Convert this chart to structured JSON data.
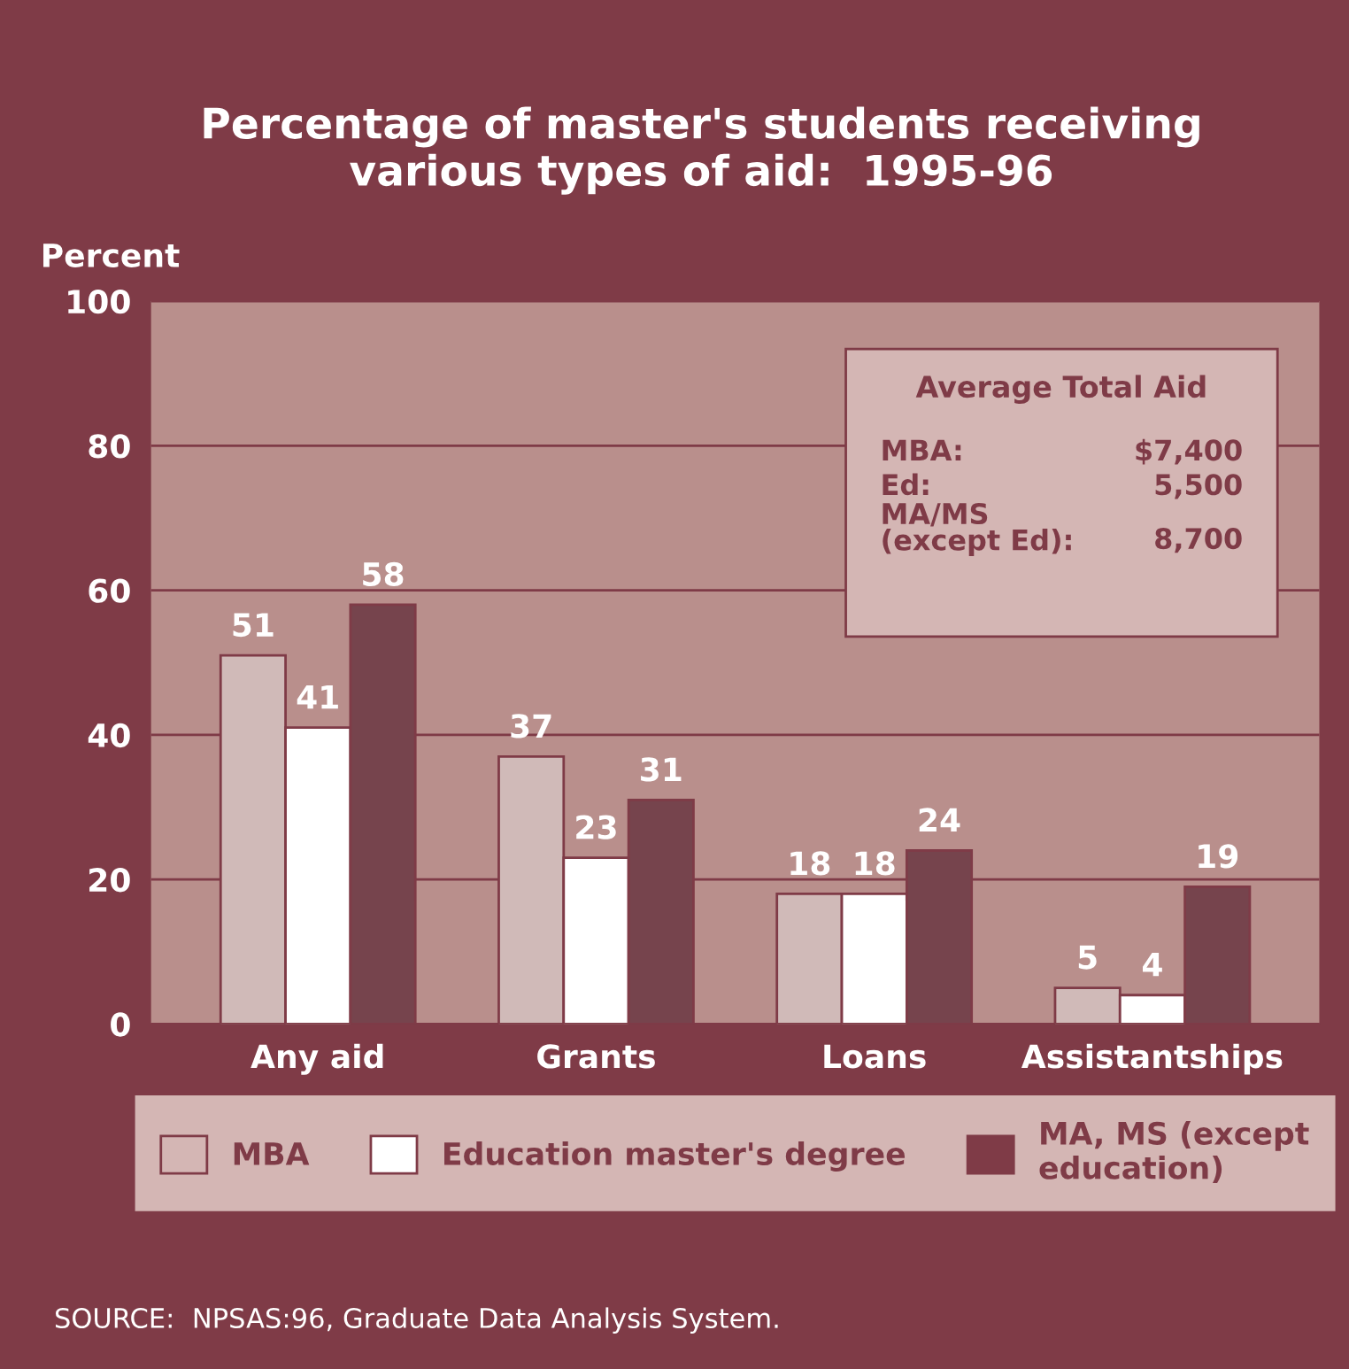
{
  "chart_data": {
    "type": "bar",
    "title": "Percentage of master's students receiving\nvarious types of aid:  1995-96",
    "ylabel": "Percent",
    "categories": [
      "Any aid",
      "Grants",
      "Loans",
      "Assistantships"
    ],
    "series": [
      {
        "name": "MBA",
        "color": "#d4b6b4",
        "values": [
          51,
          37,
          18,
          5
        ]
      },
      {
        "name": "Education master's degree",
        "color": "#ffffff",
        "values": [
          41,
          23,
          18,
          4
        ]
      },
      {
        "name": "MA, MS (except\neducation)",
        "color": "#7f3b47",
        "values": [
          58,
          31,
          24,
          19
        ]
      }
    ],
    "ylim": [
      0,
      100
    ],
    "yticks": [
      0,
      20,
      40,
      60,
      80,
      100
    ],
    "grid": "y",
    "legend": "bottom",
    "data_labels": true,
    "annotations": [
      "Average Total Aid",
      "MBA:",
      "$7,400",
      "Ed:",
      "5,500",
      "MA/MS\n(except Ed):",
      "8,700",
      "SOURCE:  NPSAS:96, Graduate Data Analysis System."
    ]
  }
}
